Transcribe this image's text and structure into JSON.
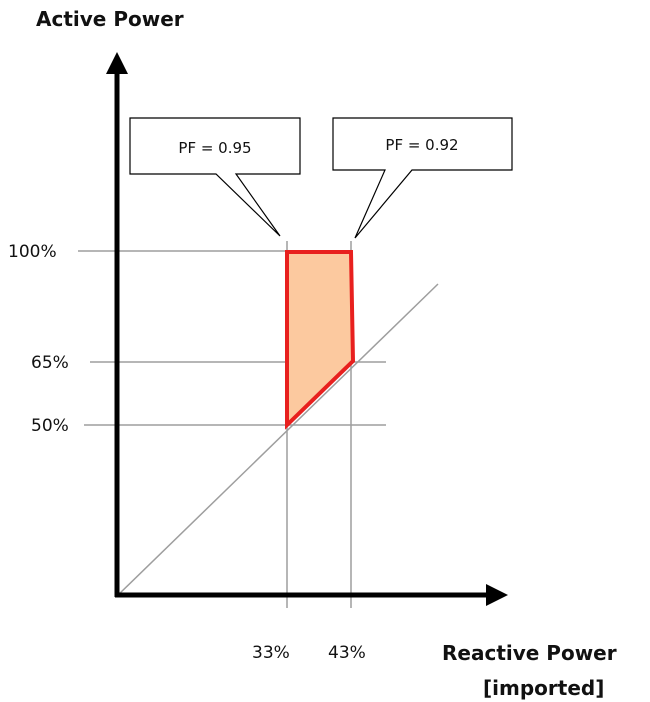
{
  "y_axis_title": "Active Power",
  "x_axis_title_line1": "Reactive Power",
  "x_axis_title_line2": "[imported]",
  "y_ticks": [
    "100%",
    "65%",
    "50%"
  ],
  "x_ticks": [
    "33%",
    "43%"
  ],
  "callouts": [
    "PF = 0.95",
    "PF = 0.92"
  ],
  "colors": {
    "region_fill": "#fcc99f",
    "region_stroke": "#e8201e",
    "guide_lines": "#9e9e9e",
    "axes": "#000000"
  },
  "operating_region": {
    "vertices": [
      {
        "q": "33%",
        "p": "100%"
      },
      {
        "q": "43%",
        "p": "100%"
      },
      {
        "q": "43%",
        "p": "65%"
      },
      {
        "q": "33%",
        "p": "50%"
      }
    ]
  }
}
